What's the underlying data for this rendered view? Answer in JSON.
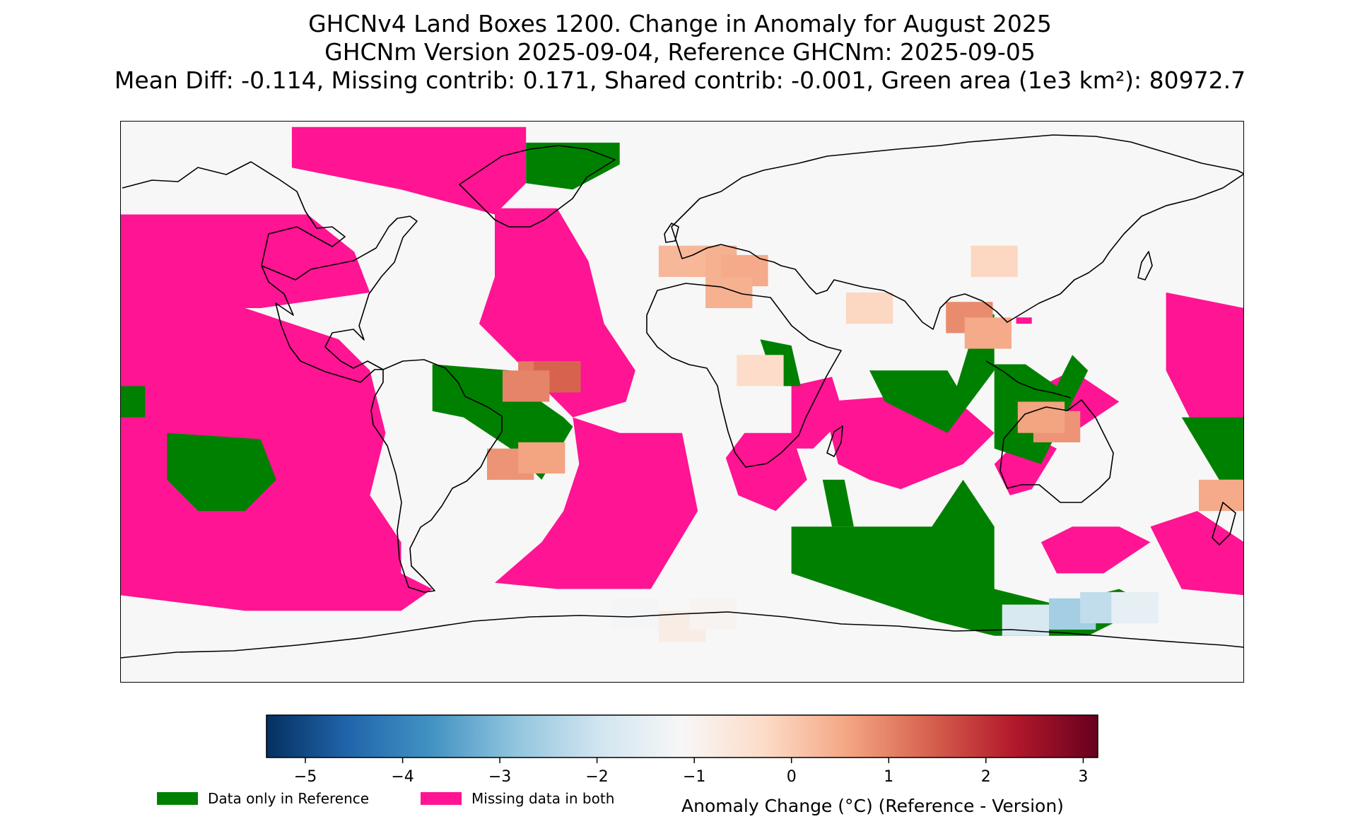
{
  "title": {
    "line1": "GHCNv4 Land Boxes 1200. Change in Anomaly for August 2025",
    "line2": "GHCNm Version 2025-09-04, Reference GHCNm: 2025-09-05",
    "line3": "Mean Diff: -0.114, Missing contrib: 0.171, Shared contrib: -0.001, Green area (1e3 km²): 80972.7"
  },
  "colors": {
    "data_only_in_reference": "#008000",
    "missing_in_both": "#ff1493",
    "no_change": "#f7f7f7",
    "coastline": "#000000"
  },
  "colorbar": {
    "label": "Anomaly Change (°C) (Reference - Version)",
    "min": -5.4,
    "max": 3.15,
    "ticks": [
      -5,
      -4,
      -3,
      -2,
      -1,
      0,
      1,
      2,
      3
    ],
    "tick_labels": [
      "−5",
      "−4",
      "−3",
      "−2",
      "−1",
      "0",
      "1",
      "2",
      "3"
    ],
    "colormap": "RdBu_r",
    "stops": [
      "#053061",
      "#2166ac",
      "#4393c3",
      "#92c5de",
      "#d1e5f0",
      "#f7f7f7",
      "#fddbc7",
      "#f4a582",
      "#d6604d",
      "#b2182b",
      "#67001f"
    ]
  },
  "legend": {
    "items": [
      {
        "label": "Data only in Reference",
        "color": "#008000"
      },
      {
        "label": "Missing data in both",
        "color": "#ff1493"
      }
    ]
  },
  "map_data": {
    "projection": "equirectangular",
    "lon_range": [
      -180,
      180
    ],
    "lat_range": [
      -90,
      90
    ],
    "missing_regions": [
      [
        [
          -180,
          60
        ],
        [
          -120,
          60
        ],
        [
          -105,
          48
        ],
        [
          -100,
          35
        ],
        [
          -135,
          30
        ],
        [
          -180,
          30
        ]
      ],
      [
        [
          -180,
          30
        ],
        [
          -140,
          30
        ],
        [
          -110,
          20
        ],
        [
          -100,
          10
        ],
        [
          -95,
          -10
        ],
        [
          -100,
          -30
        ],
        [
          -90,
          -45
        ],
        [
          -90,
          -55
        ],
        [
          -80,
          -60
        ],
        [
          -90,
          -67
        ],
        [
          -140,
          -67
        ],
        [
          -180,
          -62
        ]
      ],
      [
        [
          -50,
          88
        ],
        [
          -125,
          88
        ],
        [
          -125,
          75
        ],
        [
          -90,
          68
        ],
        [
          -60,
          60
        ],
        [
          -50,
          70
        ]
      ],
      [
        [
          -60,
          62
        ],
        [
          -40,
          62
        ],
        [
          -30,
          45
        ],
        [
          -25,
          25
        ],
        [
          -15,
          10
        ],
        [
          -18,
          0
        ],
        [
          -35,
          -5
        ],
        [
          -33,
          -20
        ],
        [
          -38,
          -35
        ],
        [
          -45,
          -45
        ],
        [
          -60,
          -58
        ],
        [
          -40,
          -60
        ],
        [
          -10,
          -60
        ],
        [
          5,
          -35
        ],
        [
          0,
          -10
        ],
        [
          -20,
          -10
        ],
        [
          -35,
          -5
        ],
        [
          -45,
          5
        ],
        [
          -55,
          15
        ],
        [
          -65,
          25
        ],
        [
          -60,
          40
        ]
      ],
      [
        [
          20,
          -10
        ],
        [
          35,
          -10
        ],
        [
          40,
          -25
        ],
        [
          30,
          -35
        ],
        [
          18,
          -30
        ],
        [
          14,
          -18
        ]
      ],
      [
        [
          35,
          5
        ],
        [
          48,
          8
        ],
        [
          52,
          -5
        ],
        [
          42,
          -15
        ],
        [
          35,
          -15
        ]
      ],
      [
        [
          45,
          0
        ],
        [
          85,
          3
        ],
        [
          100,
          -10
        ],
        [
          90,
          -20
        ],
        [
          70,
          -28
        ],
        [
          60,
          -25
        ],
        [
          50,
          -20
        ]
      ],
      [
        [
          115,
          -45
        ],
        [
          125,
          -40
        ],
        [
          140,
          -40
        ],
        [
          150,
          -45
        ],
        [
          135,
          -55
        ],
        [
          120,
          -55
        ]
      ],
      [
        [
          100,
          -20
        ],
        [
          110,
          -10
        ],
        [
          120,
          -15
        ],
        [
          112,
          -28
        ],
        [
          105,
          -30
        ]
      ],
      [
        [
          155,
          35
        ],
        [
          180,
          30
        ],
        [
          180,
          -10
        ],
        [
          165,
          -10
        ],
        [
          155,
          10
        ]
      ],
      [
        [
          150,
          -40
        ],
        [
          165,
          -35
        ],
        [
          180,
          -45
        ],
        [
          180,
          -62
        ],
        [
          160,
          -60
        ]
      ],
      [
        [
          105,
          0
        ],
        [
          125,
          10
        ],
        [
          140,
          0
        ],
        [
          125,
          -10
        ]
      ],
      [
        [
          107,
          27
        ],
        [
          112,
          27
        ],
        [
          112,
          25
        ],
        [
          107,
          25
        ]
      ]
    ],
    "reference_only_regions": [
      [
        [
          -50,
          83
        ],
        [
          -20,
          83
        ],
        [
          -20,
          76
        ],
        [
          -35,
          68
        ],
        [
          -50,
          70
        ]
      ],
      [
        [
          -80,
          12
        ],
        [
          -55,
          10
        ],
        [
          -48,
          2
        ],
        [
          -38,
          -5
        ],
        [
          -35,
          -8
        ],
        [
          -45,
          -25
        ],
        [
          -55,
          -15
        ],
        [
          -70,
          -5
        ],
        [
          -80,
          -3
        ]
      ],
      [
        [
          -165,
          -10
        ],
        [
          -135,
          -12
        ],
        [
          -130,
          -25
        ],
        [
          -140,
          -35
        ],
        [
          -155,
          -35
        ],
        [
          -165,
          -25
        ]
      ],
      [
        [
          -180,
          5
        ],
        [
          -172,
          5
        ],
        [
          -172,
          -5
        ],
        [
          -180,
          -5
        ]
      ],
      [
        [
          25,
          20
        ],
        [
          35,
          18
        ],
        [
          38,
          5
        ],
        [
          30,
          5
        ]
      ],
      [
        [
          45,
          -25
        ],
        [
          52,
          -25
        ],
        [
          55,
          -40
        ],
        [
          48,
          -40
        ]
      ],
      [
        [
          60,
          10
        ],
        [
          85,
          10
        ],
        [
          88,
          5
        ],
        [
          95,
          28
        ],
        [
          100,
          28
        ],
        [
          100,
          10
        ],
        [
          85,
          -10
        ],
        [
          65,
          0
        ]
      ],
      [
        [
          100,
          12
        ],
        [
          110,
          12
        ],
        [
          120,
          5
        ],
        [
          125,
          15
        ],
        [
          130,
          10
        ],
        [
          115,
          -20
        ],
        [
          100,
          -15
        ]
      ],
      [
        [
          160,
          -5
        ],
        [
          180,
          -5
        ],
        [
          180,
          -25
        ],
        [
          172,
          -25
        ]
      ],
      [
        [
          35,
          -40
        ],
        [
          80,
          -40
        ],
        [
          90,
          -25
        ],
        [
          100,
          -40
        ],
        [
          100,
          -60
        ],
        [
          120,
          -65
        ],
        [
          140,
          -60
        ],
        [
          150,
          -65
        ],
        [
          130,
          -75
        ],
        [
          100,
          -75
        ],
        [
          80,
          -70
        ],
        [
          50,
          -60
        ],
        [
          35,
          -55
        ]
      ]
    ],
    "anomaly_cells": [
      {
        "lon": -45,
        "lat": 8,
        "value": 1.1
      },
      {
        "lon": -40,
        "lat": 8,
        "value": 1.4
      },
      {
        "lon": -50,
        "lat": 5,
        "value": 1.0
      },
      {
        "lon": -55,
        "lat": -20,
        "value": 0.8
      },
      {
        "lon": -45,
        "lat": -18,
        "value": 0.6
      },
      {
        "lon": 10,
        "lat": 45,
        "value": 0.4
      },
      {
        "lon": 20,
        "lat": 42,
        "value": 0.5
      },
      {
        "lon": 0,
        "lat": 45,
        "value": 0.3
      },
      {
        "lon": 92,
        "lat": 27,
        "value": 0.9
      },
      {
        "lon": 98,
        "lat": 22,
        "value": 0.5
      },
      {
        "lon": 120,
        "lat": -8,
        "value": 0.8
      },
      {
        "lon": 115,
        "lat": -5,
        "value": 0.6
      },
      {
        "lon": 173,
        "lat": -30,
        "value": 0.5
      },
      {
        "lon": 15,
        "lat": 35,
        "value": 0.4
      },
      {
        "lon": 25,
        "lat": 10,
        "value": -0.3
      },
      {
        "lon": -15,
        "lat": -68,
        "value": -1.2
      },
      {
        "lon": 0,
        "lat": -72,
        "value": -0.8
      },
      {
        "lon": 10,
        "lat": -68,
        "value": -1.0
      },
      {
        "lon": 110,
        "lat": -70,
        "value": -1.8
      },
      {
        "lon": 125,
        "lat": -68,
        "value": -2.6
      },
      {
        "lon": 135,
        "lat": -66,
        "value": -2.2
      },
      {
        "lon": 145,
        "lat": -66,
        "value": -1.5
      },
      {
        "lon": 100,
        "lat": 45,
        "value": -0.2
      },
      {
        "lon": 60,
        "lat": 30,
        "value": -0.2
      }
    ]
  }
}
